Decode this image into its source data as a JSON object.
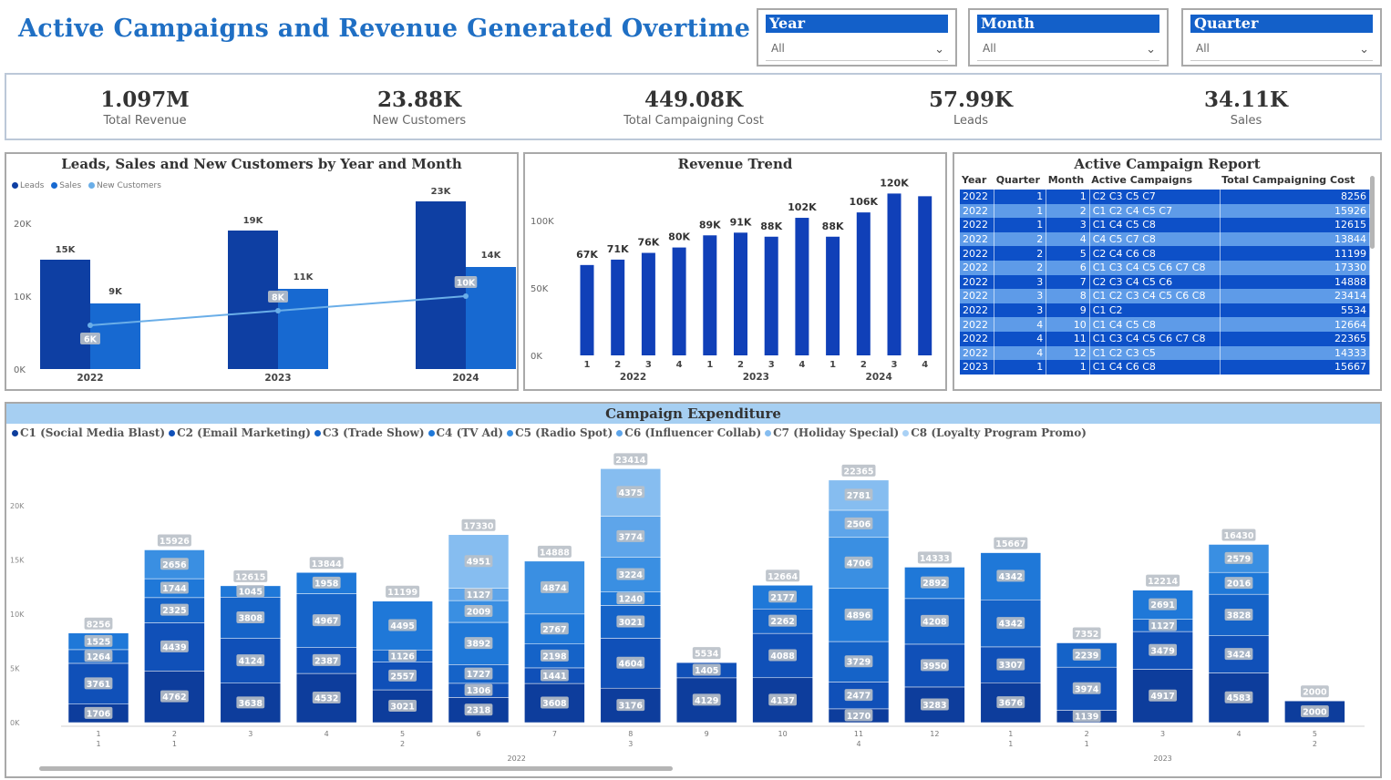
{
  "title": "Active Campaigns and Revenue Generated Overtime",
  "slicers": [
    {
      "label": "Year",
      "value": "All"
    },
    {
      "label": "Month",
      "value": "All"
    },
    {
      "label": "Quarter",
      "value": "All"
    }
  ],
  "kpis": [
    {
      "value": "1.097M",
      "label": "Total Revenue"
    },
    {
      "value": "23.88K",
      "label": "New Customers"
    },
    {
      "value": "449.08K",
      "label": "Total Campaigning Cost"
    },
    {
      "value": "57.99K",
      "label": "Leads"
    },
    {
      "value": "34.11K",
      "label": "Sales"
    }
  ],
  "colors": {
    "leads": "#0e3fa3",
    "sales": "#1769d1",
    "new_customers": "#6aaee8",
    "revenue_bar": "#1040b8",
    "accent": "#1f6fc4",
    "series": [
      "#0d3d9c",
      "#1050b8",
      "#1563c8",
      "#1f78d8",
      "#3a8fe2",
      "#5ea5ea",
      "#86bdf0",
      "#a9d1f5"
    ]
  },
  "chart_data": [
    {
      "type": "bar",
      "title": "Leads, Sales and New Customers by Year and Month",
      "legend": [
        "Leads",
        "Sales",
        "New Customers"
      ],
      "legend_position": "top-left",
      "categories": [
        "2022",
        "2023",
        "2024"
      ],
      "series": [
        {
          "name": "Leads",
          "values": [
            15000,
            19000,
            23000
          ],
          "labels": [
            "15K",
            "19K",
            "23K"
          ]
        },
        {
          "name": "Sales",
          "values": [
            9000,
            11000,
            14000
          ],
          "labels": [
            "9K",
            "11K",
            "14K"
          ]
        },
        {
          "name": "New Customers",
          "values": [
            6000,
            8000,
            10000
          ],
          "labels": [
            "6K",
            "8K",
            "10K"
          ],
          "type": "line"
        }
      ],
      "yticks": [
        "0K",
        "10K",
        "20K"
      ],
      "ylim": [
        0,
        25000
      ]
    },
    {
      "type": "bar",
      "title": "Revenue Trend",
      "x": [
        {
          "month": "1",
          "year": "2022"
        },
        {
          "month": "2",
          "year": "2022"
        },
        {
          "month": "3",
          "year": "2022"
        },
        {
          "month": "4",
          "year": "2022"
        },
        {
          "month": "1",
          "year": "2023"
        },
        {
          "month": "2",
          "year": "2023"
        },
        {
          "month": "3",
          "year": "2023"
        },
        {
          "month": "4",
          "year": "2023"
        },
        {
          "month": "1",
          "year": "2024"
        },
        {
          "month": "2",
          "year": "2024"
        },
        {
          "month": "3",
          "year": "2024"
        },
        {
          "month": "4",
          "year": "2024"
        }
      ],
      "values": [
        67000,
        71000,
        76000,
        80000,
        89000,
        91000,
        88000,
        102000,
        88000,
        106000,
        120000,
        118000
      ],
      "labels": [
        "67K",
        "71K",
        "76K",
        "80K",
        "89K",
        "91K",
        "88K",
        "102K",
        "88K",
        "106K",
        "120K",
        ""
      ],
      "years": [
        "2022",
        "2023",
        "2024"
      ],
      "yticks": [
        "0K",
        "50K",
        "100K"
      ],
      "ylim": [
        0,
        125000
      ]
    },
    {
      "type": "bar",
      "title": "Campaign Expenditure",
      "legend": [
        "C1 (Social Media Blast)",
        "C2 (Email Marketing)",
        "C3 (Trade Show)",
        "C4 (TV Ad)",
        "C5 (Radio Spot)",
        "C6 (Influencer Collab)",
        "C7 (Holiday Special)",
        "C8 (Loyalty Program Promo)"
      ],
      "legend_position": "top-left",
      "stacked": true,
      "yticks": [
        "0K",
        "5K",
        "10K",
        "15K",
        "20K"
      ],
      "ylim": [
        0,
        25000
      ],
      "bars": [
        {
          "month": "1",
          "q": "1",
          "total": 8256,
          "segs": [
            1706,
            3761,
            1264,
            1525
          ]
        },
        {
          "month": "2",
          "q": "1",
          "total": 15926,
          "segs": [
            4762,
            4439,
            2325,
            1744,
            2656
          ]
        },
        {
          "month": "3",
          "q": "",
          "total": 12615,
          "segs": [
            3638,
            4124,
            3808,
            1045
          ]
        },
        {
          "month": "4",
          "q": "",
          "total": 13844,
          "segs": [
            4532,
            2387,
            4967,
            1958
          ]
        },
        {
          "month": "5",
          "q": "2",
          "total": 11199,
          "segs": [
            3021,
            2557,
            1126,
            4495
          ]
        },
        {
          "month": "6",
          "q": "",
          "total": 17330,
          "segs": [
            2318,
            1306,
            1727,
            3892,
            2009,
            1127,
            4951
          ]
        },
        {
          "month": "7",
          "q": "",
          "total": 14888,
          "segs": [
            3608,
            1441,
            2198,
            2767,
            4874
          ]
        },
        {
          "month": "8",
          "q": "3",
          "total": 23414,
          "segs": [
            3176,
            4604,
            3021,
            1240,
            3224,
            3774,
            4375
          ]
        },
        {
          "month": "9",
          "q": "",
          "total": 5534,
          "segs": [
            4129,
            1405
          ]
        },
        {
          "month": "10",
          "q": "",
          "total": 12664,
          "segs": [
            4137,
            4088,
            2262,
            2177
          ]
        },
        {
          "month": "11",
          "q": "4",
          "total": 22365,
          "segs": [
            1270,
            2477,
            3729,
            4896,
            4706,
            2506,
            2781
          ]
        },
        {
          "month": "12",
          "q": "",
          "total": 14333,
          "segs": [
            3283,
            3950,
            4208,
            2892
          ]
        },
        {
          "month": "1",
          "q": "1",
          "total": 15667,
          "segs": [
            3676,
            3307,
            4342,
            4342
          ]
        },
        {
          "month": "2",
          "q": "1",
          "total": 7352,
          "segs": [
            1139,
            3974,
            2239
          ]
        },
        {
          "month": "3",
          "q": "",
          "total": 12214,
          "segs": [
            4917,
            3479,
            1127,
            2691
          ]
        },
        {
          "month": "4",
          "q": "",
          "total": 16430,
          "segs": [
            4583,
            3424,
            3828,
            2016,
            2579
          ]
        },
        {
          "month": "5",
          "q": "2",
          "total": 2000,
          "segs": [
            2000
          ]
        }
      ],
      "years": [
        "2022",
        "2023"
      ]
    }
  ],
  "panels": {
    "leads_title": "Leads, Sales and New Customers by Year and Month",
    "revenue_title": "Revenue Trend",
    "report_title": "Active Campaign Report",
    "expenditure_title": "Campaign Expenditure"
  },
  "report": {
    "columns": [
      "Year",
      "Quarter",
      "Month",
      "Active Campaigns",
      "Total Campaigning Cost"
    ],
    "rows": [
      [
        "2022",
        "1",
        "1",
        "C2 C3 C5 C7",
        "8256"
      ],
      [
        "2022",
        "1",
        "2",
        "C1 C2 C4 C5 C7",
        "15926"
      ],
      [
        "2022",
        "1",
        "3",
        "C1 C4 C5 C8",
        "12615"
      ],
      [
        "2022",
        "2",
        "4",
        "C4 C5 C7 C8",
        "13844"
      ],
      [
        "2022",
        "2",
        "5",
        "C2 C4 C6 C8",
        "11199"
      ],
      [
        "2022",
        "2",
        "6",
        "C1 C3 C4 C5 C6 C7 C8",
        "17330"
      ],
      [
        "2022",
        "3",
        "7",
        "C2 C3 C4 C5 C6",
        "14888"
      ],
      [
        "2022",
        "3",
        "8",
        "C1 C2 C3 C4 C5 C6 C8",
        "23414"
      ],
      [
        "2022",
        "3",
        "9",
        "C1 C2",
        "5534"
      ],
      [
        "2022",
        "4",
        "10",
        "C1 C4 C5 C8",
        "12664"
      ],
      [
        "2022",
        "4",
        "11",
        "C1 C3 C4 C5 C6 C7 C8",
        "22365"
      ],
      [
        "2022",
        "4",
        "12",
        "C1 C2 C3 C5",
        "14333"
      ],
      [
        "2023",
        "1",
        "1",
        "C1 C4 C6 C8",
        "15667"
      ]
    ]
  }
}
